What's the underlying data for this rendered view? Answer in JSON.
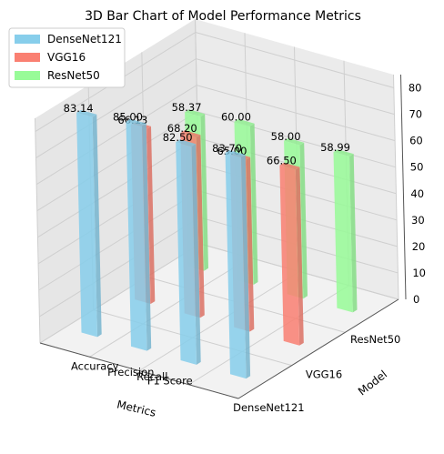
{
  "chart_data": {
    "type": "bar",
    "title": "3D Bar Chart of Model Performance Metrics",
    "xlabel": "Metrics",
    "ylabel": "Model",
    "categories": [
      "Accuracy",
      "Precision",
      "Recall",
      "F1 Score"
    ],
    "models": [
      "DenseNet121",
      "VGG16",
      "ResNet50"
    ],
    "series": [
      {
        "name": "DenseNet121",
        "color": "#87ceeb",
        "values": [
          83.14,
          85.0,
          82.5,
          83.7
        ]
      },
      {
        "name": "VGG16",
        "color": "#fa8072",
        "values": [
          66.13,
          68.2,
          65.0,
          66.5
        ]
      },
      {
        "name": "ResNet50",
        "color": "#98fb98",
        "values": [
          58.37,
          60.0,
          58.0,
          58.99
        ]
      }
    ],
    "value_labels": [
      [
        "83.14",
        "85.00",
        "82.50",
        "83.70"
      ],
      [
        "66.13",
        "68.20",
        "65.00",
        "66.50"
      ],
      [
        "58.37",
        "60.00",
        "58.00",
        "58.99"
      ]
    ],
    "zticks": [
      "0",
      "10",
      "20",
      "30",
      "40",
      "50",
      "60",
      "70",
      "80"
    ],
    "zlim": [
      0,
      85
    ],
    "grid": true,
    "legend_position": "top-left"
  }
}
